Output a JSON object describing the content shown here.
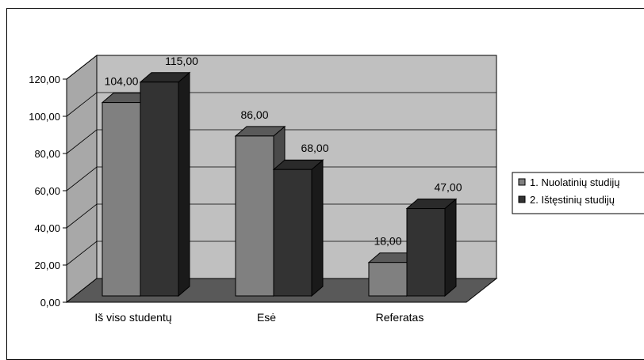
{
  "chart_data": {
    "type": "bar",
    "categories": [
      "Iš viso studentų",
      "Esė",
      "Referatas"
    ],
    "series": [
      {
        "name": "1. Nuolatinių studijų",
        "values": [
          104.0,
          86.0,
          18.0
        ],
        "color": "#808080"
      },
      {
        "name": "2. Ištęstinių studijų",
        "values": [
          115.0,
          68.0,
          47.0
        ],
        "color": "#333333"
      }
    ],
    "data_labels": [
      [
        "104,00",
        "86,00",
        "18,00"
      ],
      [
        "115,00",
        "68,00",
        "47,00"
      ]
    ],
    "y_ticks": [
      "0,00",
      "20,00",
      "40,00",
      "60,00",
      "80,00",
      "100,00",
      "120,00"
    ],
    "ylim": [
      0,
      120
    ],
    "three_d": true,
    "grid": true,
    "legend_position": "right",
    "wall_color": "#c0c0c0",
    "floor_color": "#595959"
  }
}
